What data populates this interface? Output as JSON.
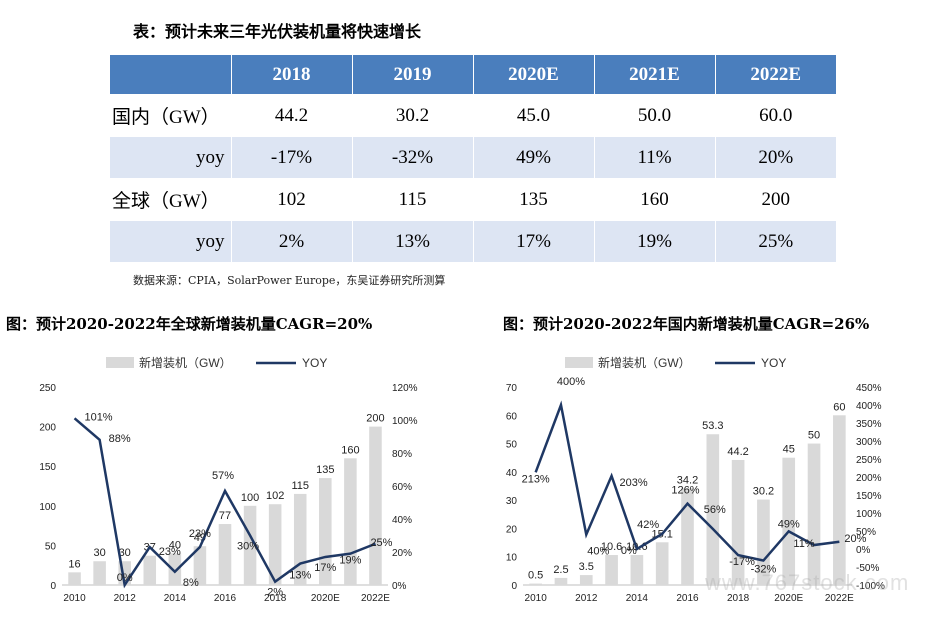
{
  "table": {
    "title": "表：预计未来三年光伏装机量将快速增长",
    "headers": [
      "",
      "2018",
      "2019",
      "2020E",
      "2021E",
      "2022E"
    ],
    "rows": [
      [
        "国内（GW）",
        "44.2",
        "30.2",
        "45.0",
        "50.0",
        "60.0"
      ],
      [
        "yoy",
        "-17%",
        "-32%",
        "49%",
        "11%",
        "20%"
      ],
      [
        "全球（GW）",
        "102",
        "115",
        "135",
        "160",
        "200"
      ],
      [
        "yoy",
        "2%",
        "13%",
        "17%",
        "19%",
        "25%"
      ]
    ],
    "source": "数据来源：CPIA，SolarPower Europe，东吴证券研究所测算"
  },
  "colors": {
    "header_bg": "#4a7ebd",
    "row_alt_bg": "#dde5f3",
    "bar": "#d9d9d9",
    "line": "#1f3864"
  },
  "watermark": "www.767stock.com",
  "chart_data": [
    {
      "type": "bar",
      "title": "图：预计2020-2022年全球新增装机量CAGR=20%",
      "categories": [
        "2010",
        "2011",
        "2012",
        "2013",
        "2014",
        "2015",
        "2016",
        "2017",
        "2018",
        "2019",
        "2020E",
        "2021E",
        "2022E"
      ],
      "x_tick_labels": [
        "2010",
        "",
        "2012",
        "",
        "2014",
        "",
        "2016",
        "",
        "2018",
        "",
        "2020E",
        "",
        "2022E"
      ],
      "series": [
        {
          "name": "新增装机（GW）",
          "type": "bar",
          "axis": "left",
          "values": [
            16,
            30,
            30,
            37,
            40,
            49,
            77,
            100,
            102,
            115,
            135,
            160,
            200
          ],
          "labels": [
            "16",
            "30",
            "30",
            "37",
            "40",
            "49",
            "77",
            "100",
            "102",
            "115",
            "135",
            "160",
            "200"
          ]
        },
        {
          "name": "YOY",
          "type": "line",
          "axis": "right",
          "values": [
            101,
            88,
            0,
            23,
            8,
            23,
            57,
            30,
            2,
            13,
            17,
            19,
            25
          ],
          "labels": [
            "101%",
            "88%",
            "0%",
            "23%",
            "8%",
            "23%",
            "57%",
            "30%",
            "2%",
            "13%",
            "17%",
            "19%",
            "25%"
          ]
        }
      ],
      "ylim_left": [
        0,
        250
      ],
      "yticks_left": [
        0,
        50,
        100,
        150,
        200,
        250
      ],
      "ylim_right": [
        0,
        120
      ],
      "yticks_right": [
        "0%",
        "20%",
        "40%",
        "60%",
        "80%",
        "100%",
        "120%"
      ],
      "legend_position": "top"
    },
    {
      "type": "bar",
      "title": "图：预计2020-2022年国内新增装机量CAGR=26%",
      "categories": [
        "2010",
        "2011",
        "2012",
        "2013",
        "2014",
        "2015",
        "2016",
        "2017",
        "2018",
        "2019",
        "2020E",
        "2021E",
        "2022E"
      ],
      "x_tick_labels": [
        "2010",
        "",
        "2012",
        "",
        "2014",
        "",
        "2016",
        "",
        "2018",
        "",
        "2020E",
        "",
        "2022E"
      ],
      "series": [
        {
          "name": "新增装机（GW）",
          "type": "bar",
          "axis": "left",
          "values": [
            0.5,
            2.5,
            3.5,
            10.6,
            10.6,
            15.1,
            34.2,
            53.3,
            44.2,
            30.2,
            45,
            50,
            60
          ],
          "labels": [
            "0.5",
            "2.5",
            "3.5",
            "10.6",
            "10.6",
            "15.1",
            "34.2",
            "53.3",
            "44.2",
            "30.2",
            "45",
            "50",
            "60"
          ]
        },
        {
          "name": "YOY",
          "type": "line",
          "axis": "right",
          "values": [
            213,
            400,
            40,
            203,
            0,
            42,
            126,
            56,
            -17,
            -32,
            49,
            11,
            20
          ],
          "labels": [
            "213%",
            "400%",
            "40%",
            "203%",
            "0%",
            "42%",
            "126%",
            "56%",
            "-17%",
            "-32%",
            "49%",
            "11%",
            "20%"
          ]
        }
      ],
      "ylim_left": [
        0,
        70
      ],
      "yticks_left": [
        0,
        10,
        20,
        30,
        40,
        50,
        60,
        70
      ],
      "ylim_right": [
        -100,
        450
      ],
      "yticks_right": [
        "-100%",
        "-50%",
        "0%",
        "50%",
        "100%",
        "150%",
        "200%",
        "250%",
        "300%",
        "350%",
        "400%",
        "450%"
      ],
      "legend_position": "top"
    }
  ]
}
